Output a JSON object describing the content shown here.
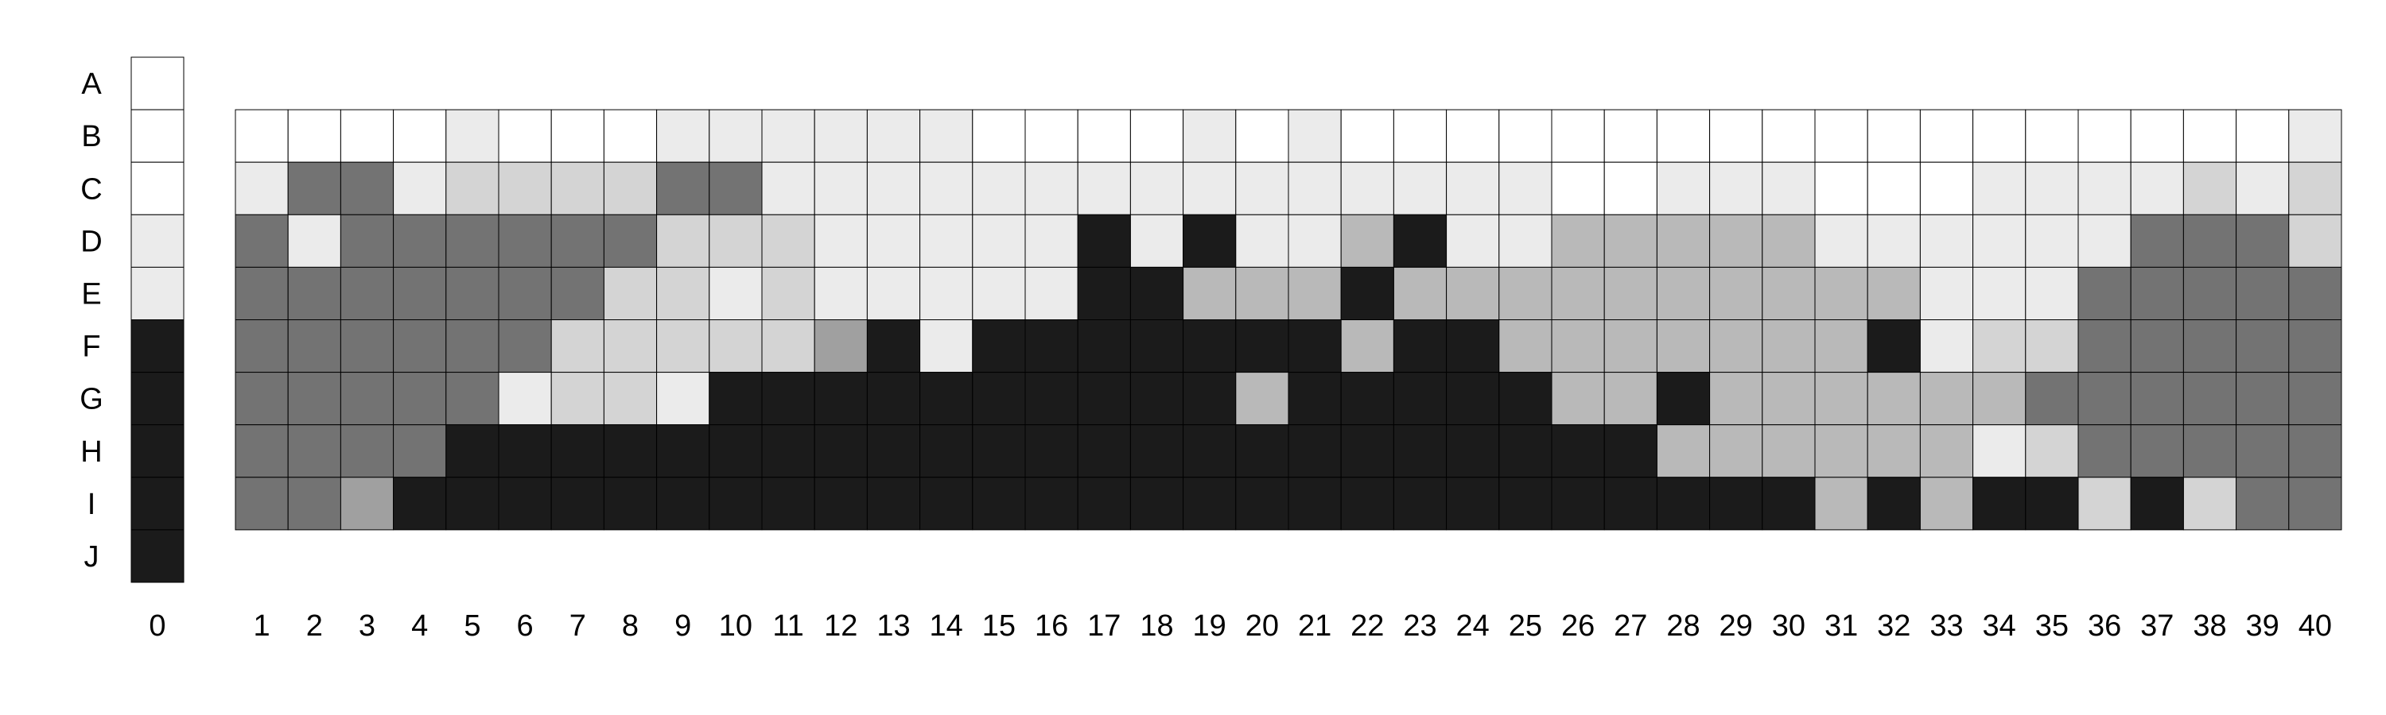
{
  "chart_data": {
    "type": "heatmap",
    "title": "",
    "xlabel": "",
    "ylabel": "",
    "grid": true,
    "legend": "none",
    "row_labels": [
      "A",
      "B",
      "C",
      "D",
      "E",
      "F",
      "G",
      "H",
      "I",
      "J"
    ],
    "legend_column": {
      "x_label": "0",
      "levels": [
        0,
        0,
        0,
        1,
        1,
        5,
        5,
        5,
        5,
        5
      ]
    },
    "heatmap": {
      "rows": [
        "B",
        "C",
        "D",
        "E",
        "F",
        "G",
        "H",
        "I"
      ],
      "x": [
        1,
        2,
        3,
        4,
        5,
        6,
        7,
        8,
        9,
        10,
        11,
        12,
        13,
        14,
        15,
        16,
        17,
        18,
        19,
        20,
        21,
        22,
        23,
        24,
        25,
        26,
        27,
        28,
        29,
        30,
        31,
        32,
        33,
        34,
        35,
        36,
        37,
        38,
        39,
        40
      ],
      "values": [
        [
          0,
          0,
          0,
          0,
          1,
          0,
          0,
          0,
          1,
          1,
          1,
          1,
          1,
          1,
          0,
          0,
          0,
          0,
          1,
          0,
          1,
          0,
          0,
          0,
          0,
          0,
          0,
          0,
          0,
          0,
          0,
          0,
          0,
          0,
          0,
          0,
          0,
          0,
          0,
          1
        ],
        [
          1,
          4,
          4,
          1,
          2,
          2,
          2,
          2,
          4,
          4,
          1,
          1,
          1,
          1,
          1,
          1,
          1,
          1,
          1,
          1,
          1,
          1,
          1,
          1,
          1,
          0,
          0,
          1,
          1,
          1,
          0,
          0,
          0,
          1,
          1,
          1,
          1,
          2,
          1,
          2
        ],
        [
          4,
          1,
          4,
          4,
          4,
          4,
          4,
          4,
          2,
          2,
          2,
          1,
          1,
          1,
          1,
          1,
          5,
          1,
          5,
          1,
          1,
          3,
          5,
          1,
          1,
          3,
          3,
          3,
          3,
          3,
          1,
          1,
          1,
          1,
          1,
          1,
          4,
          4,
          4,
          2
        ],
        [
          4,
          4,
          4,
          4,
          4,
          4,
          4,
          2,
          2,
          1,
          2,
          1,
          1,
          1,
          1,
          1,
          5,
          5,
          3,
          3,
          3,
          5,
          3,
          3,
          3,
          3,
          3,
          3,
          3,
          3,
          3,
          3,
          1,
          1,
          1,
          4,
          4,
          4,
          4,
          4
        ],
        [
          4,
          4,
          4,
          4,
          4,
          4,
          2,
          2,
          2,
          2,
          2,
          6,
          5,
          1,
          5,
          5,
          5,
          5,
          5,
          5,
          5,
          3,
          5,
          5,
          3,
          3,
          3,
          3,
          3,
          3,
          3,
          5,
          1,
          2,
          2,
          4,
          4,
          4,
          4,
          4
        ],
        [
          4,
          4,
          4,
          4,
          4,
          1,
          2,
          2,
          1,
          5,
          5,
          5,
          5,
          5,
          5,
          5,
          5,
          5,
          5,
          3,
          5,
          5,
          5,
          5,
          5,
          3,
          3,
          5,
          3,
          3,
          3,
          3,
          3,
          3,
          4,
          4,
          4,
          4,
          4,
          4
        ],
        [
          4,
          4,
          4,
          4,
          5,
          5,
          5,
          5,
          5,
          5,
          5,
          5,
          5,
          5,
          5,
          5,
          5,
          5,
          5,
          5,
          5,
          5,
          5,
          5,
          5,
          5,
          5,
          3,
          3,
          3,
          3,
          3,
          3,
          1,
          2,
          4,
          4,
          4,
          4,
          4
        ],
        [
          4,
          4,
          6,
          5,
          5,
          5,
          5,
          5,
          5,
          5,
          5,
          5,
          5,
          5,
          5,
          5,
          5,
          5,
          5,
          5,
          5,
          5,
          5,
          5,
          5,
          5,
          5,
          5,
          5,
          5,
          3,
          5,
          3,
          5,
          5,
          2,
          5,
          2,
          4,
          4
        ]
      ]
    },
    "levels": [
      "level-0",
      "level-1",
      "level-2",
      "level-3",
      "level-4",
      "level-5",
      "level-6"
    ],
    "level_colors": [
      "#ffffff",
      "#ebebeb",
      "#d4d4d4",
      "#b9b9b9",
      "#737373",
      "#1b1b1b",
      "#a0a0a0"
    ]
  }
}
